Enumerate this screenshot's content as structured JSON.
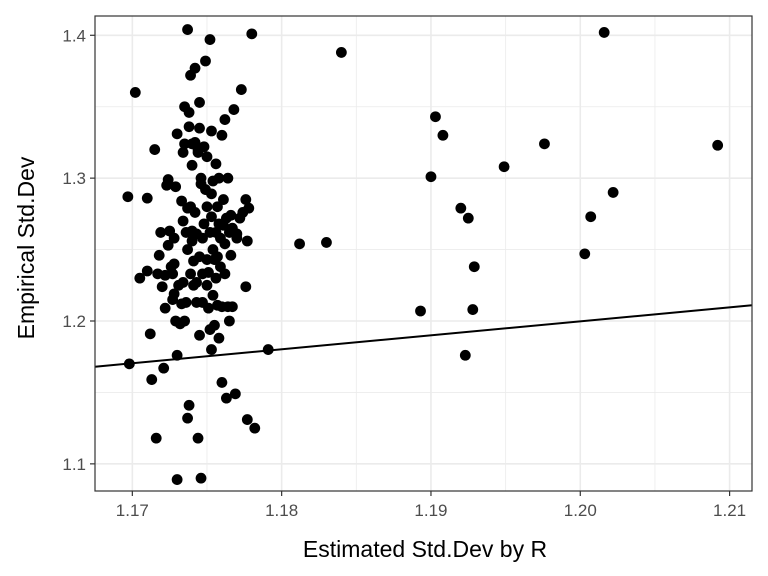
{
  "chart_data": {
    "type": "scatter",
    "title": "",
    "xlabel": "Estimated Std.Dev by R",
    "ylabel": "Empirical Std.Dev",
    "xlim": [
      1.1675,
      1.2115
    ],
    "ylim": [
      1.081,
      1.4135
    ],
    "x_ticks": [
      1.17,
      1.18,
      1.19,
      1.2,
      1.21
    ],
    "x_tick_labels": [
      "1.17",
      "1.18",
      "1.19",
      "1.20",
      "1.21"
    ],
    "y_ticks": [
      1.1,
      1.2,
      1.3,
      1.4
    ],
    "y_tick_labels": [
      "1.1",
      "1.2",
      "1.3",
      "1.4"
    ],
    "grid": true,
    "legend": "none",
    "colors": {
      "points": "#000000",
      "line": "#000000",
      "grid": "#ebebeb",
      "panel_border": "#333333"
    },
    "reference_line": {
      "x": [
        1.1675,
        1.2115
      ],
      "y": [
        1.168,
        1.211
      ]
    },
    "points": [
      [
        1.1697,
        1.287
      ],
      [
        1.1698,
        1.17
      ],
      [
        1.1702,
        1.36
      ],
      [
        1.1705,
        1.23
      ],
      [
        1.171,
        1.235
      ],
      [
        1.171,
        1.286
      ],
      [
        1.1712,
        1.191
      ],
      [
        1.1713,
        1.159
      ],
      [
        1.1715,
        1.32
      ],
      [
        1.1716,
        1.118
      ],
      [
        1.1717,
        1.233
      ],
      [
        1.1718,
        1.246
      ],
      [
        1.1719,
        1.262
      ],
      [
        1.172,
        1.224
      ],
      [
        1.1721,
        1.167
      ],
      [
        1.1722,
        1.232
      ],
      [
        1.1722,
        1.209
      ],
      [
        1.1723,
        1.295
      ],
      [
        1.1724,
        1.299
      ],
      [
        1.1724,
        1.253
      ],
      [
        1.1725,
        1.263
      ],
      [
        1.1726,
        1.238
      ],
      [
        1.1727,
        1.215
      ],
      [
        1.1727,
        1.233
      ],
      [
        1.1728,
        1.219
      ],
      [
        1.1728,
        1.24
      ],
      [
        1.1728,
        1.258
      ],
      [
        1.1729,
        1.294
      ],
      [
        1.1729,
        1.2
      ],
      [
        1.173,
        1.331
      ],
      [
        1.173,
        1.176
      ],
      [
        1.173,
        1.089
      ],
      [
        1.1731,
        1.225
      ],
      [
        1.1732,
        1.198
      ],
      [
        1.1733,
        1.284
      ],
      [
        1.1733,
        1.212
      ],
      [
        1.1734,
        1.318
      ],
      [
        1.1734,
        1.27
      ],
      [
        1.1734,
        1.227
      ],
      [
        1.1735,
        1.35
      ],
      [
        1.1735,
        1.2
      ],
      [
        1.1735,
        1.324
      ],
      [
        1.1736,
        1.262
      ],
      [
        1.1736,
        1.213
      ],
      [
        1.1737,
        1.404
      ],
      [
        1.1737,
        1.279
      ],
      [
        1.1737,
        1.25
      ],
      [
        1.1737,
        1.132
      ],
      [
        1.1738,
        1.346
      ],
      [
        1.1738,
        1.141
      ],
      [
        1.1738,
        1.336
      ],
      [
        1.1739,
        1.372
      ],
      [
        1.1739,
        1.28
      ],
      [
        1.1739,
        1.233
      ],
      [
        1.174,
        1.309
      ],
      [
        1.174,
        1.324
      ],
      [
        1.174,
        1.256
      ],
      [
        1.174,
        1.263
      ],
      [
        1.1741,
        1.225
      ],
      [
        1.1741,
        1.242
      ],
      [
        1.1742,
        1.377
      ],
      [
        1.1742,
        1.325
      ],
      [
        1.1742,
        1.276
      ],
      [
        1.1743,
        1.261
      ],
      [
        1.1743,
        1.227
      ],
      [
        1.1743,
        1.213
      ],
      [
        1.1744,
        1.118
      ],
      [
        1.1744,
        1.32
      ],
      [
        1.1744,
        1.318
      ],
      [
        1.1745,
        1.353
      ],
      [
        1.1745,
        1.19
      ],
      [
        1.1745,
        1.335
      ],
      [
        1.1745,
        1.245
      ],
      [
        1.1746,
        1.09
      ],
      [
        1.1746,
        1.296
      ],
      [
        1.1746,
        1.3
      ],
      [
        1.1747,
        1.258
      ],
      [
        1.1747,
        1.233
      ],
      [
        1.1747,
        1.213
      ],
      [
        1.1748,
        1.268
      ],
      [
        1.1748,
        1.322
      ],
      [
        1.1749,
        1.292
      ],
      [
        1.1749,
        1.382
      ],
      [
        1.175,
        1.315
      ],
      [
        1.175,
        1.28
      ],
      [
        1.175,
        1.243
      ],
      [
        1.175,
        1.225
      ],
      [
        1.1751,
        1.234
      ],
      [
        1.1751,
        1.209
      ],
      [
        1.1752,
        1.397
      ],
      [
        1.1752,
        1.194
      ],
      [
        1.1752,
        1.262
      ],
      [
        1.1753,
        1.333
      ],
      [
        1.1753,
        1.289
      ],
      [
        1.1753,
        1.273
      ],
      [
        1.1753,
        1.18
      ],
      [
        1.1754,
        1.25
      ],
      [
        1.1754,
        1.298
      ],
      [
        1.1754,
        1.218
      ],
      [
        1.1755,
        1.243
      ],
      [
        1.1755,
        1.197
      ],
      [
        1.1756,
        1.31
      ],
      [
        1.1756,
        1.262
      ],
      [
        1.1756,
        1.23
      ],
      [
        1.1757,
        1.245
      ],
      [
        1.1757,
        1.28
      ],
      [
        1.1757,
        1.211
      ],
      [
        1.1758,
        1.3
      ],
      [
        1.1758,
        1.268
      ],
      [
        1.1758,
        1.188
      ],
      [
        1.1759,
        1.258
      ],
      [
        1.1759,
        1.238
      ],
      [
        1.176,
        1.33
      ],
      [
        1.176,
        1.21
      ],
      [
        1.176,
        1.157
      ],
      [
        1.1761,
        1.267
      ],
      [
        1.1761,
        1.285
      ],
      [
        1.1762,
        1.341
      ],
      [
        1.1762,
        1.233
      ],
      [
        1.1762,
        1.254
      ],
      [
        1.1763,
        1.272
      ],
      [
        1.1763,
        1.146
      ],
      [
        1.1764,
        1.3
      ],
      [
        1.1764,
        1.21
      ],
      [
        1.1765,
        1.262
      ],
      [
        1.1765,
        1.2
      ],
      [
        1.1766,
        1.274
      ],
      [
        1.1766,
        1.246
      ],
      [
        1.1767,
        1.265
      ],
      [
        1.1767,
        1.21
      ],
      [
        1.1768,
        1.348
      ],
      [
        1.1769,
        1.149
      ],
      [
        1.177,
        1.258
      ],
      [
        1.177,
        1.261
      ],
      [
        1.1772,
        1.272
      ],
      [
        1.1773,
        1.362
      ],
      [
        1.1774,
        1.276
      ],
      [
        1.1776,
        1.285
      ],
      [
        1.1776,
        1.224
      ],
      [
        1.1777,
        1.256
      ],
      [
        1.1777,
        1.131
      ],
      [
        1.1778,
        1.279
      ],
      [
        1.178,
        1.401
      ],
      [
        1.1782,
        1.125
      ],
      [
        1.1791,
        1.18
      ],
      [
        1.1812,
        1.254
      ],
      [
        1.183,
        1.255
      ],
      [
        1.184,
        1.388
      ],
      [
        1.1893,
        1.207
      ],
      [
        1.19,
        1.301
      ],
      [
        1.1903,
        1.343
      ],
      [
        1.1908,
        1.33
      ],
      [
        1.192,
        1.279
      ],
      [
        1.1923,
        1.176
      ],
      [
        1.1925,
        1.272
      ],
      [
        1.1928,
        1.208
      ],
      [
        1.1929,
        1.238
      ],
      [
        1.1949,
        1.308
      ],
      [
        1.1976,
        1.324
      ],
      [
        1.2003,
        1.247
      ],
      [
        1.2007,
        1.273
      ],
      [
        1.2016,
        1.402
      ],
      [
        1.2022,
        1.29
      ],
      [
        1.2092,
        1.323
      ]
    ]
  }
}
